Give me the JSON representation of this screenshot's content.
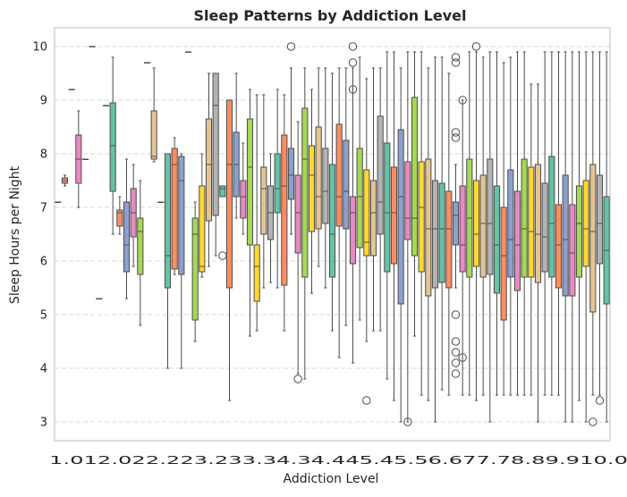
{
  "chart_data": {
    "type": "box",
    "title": "Sleep Patterns by Addiction Level",
    "xlabel": "Addiction Level",
    "ylabel": "Sleep Hours per Night",
    "ylim": [
      2.65,
      10.35
    ],
    "yticks": [
      3,
      4,
      5,
      6,
      7,
      8,
      9,
      10
    ],
    "grid": "horizontal-dashed",
    "legend": "none",
    "palette": [
      "#66c2a5",
      "#fc8d62",
      "#8da0cb",
      "#e78ac3",
      "#a6d854",
      "#ffd92f",
      "#e5c494",
      "#b3b3b3"
    ],
    "xtick_text": "1.012.022.223.233.34.34.445.45.56.677.78.89.910.0",
    "boxes": [
      {
        "q1": 7.1,
        "med": 7.1,
        "q3": 7.1,
        "lo": 7.1,
        "hi": 7.1,
        "out": []
      },
      {
        "q1": 7.45,
        "med": 7.5,
        "q3": 7.55,
        "lo": 7.4,
        "hi": 7.6,
        "out": []
      },
      {
        "q1": 9.2,
        "med": 9.2,
        "q3": 9.2,
        "lo": 9.2,
        "hi": 9.2,
        "out": []
      },
      {
        "q1": 7.45,
        "med": 7.9,
        "q3": 8.35,
        "lo": 7.0,
        "hi": 8.8,
        "out": []
      },
      {
        "q1": 7.9,
        "med": 7.9,
        "q3": 7.9,
        "lo": 7.9,
        "hi": 7.9,
        "out": []
      },
      {
        "q1": 10.0,
        "med": 10.0,
        "q3": 10.0,
        "lo": 10.0,
        "hi": 10.0,
        "out": []
      },
      {
        "q1": 5.3,
        "med": 5.3,
        "q3": 5.3,
        "lo": 5.3,
        "hi": 5.3,
        "out": []
      },
      {
        "q1": 8.9,
        "med": 8.9,
        "q3": 8.9,
        "lo": 8.9,
        "hi": 8.9,
        "out": []
      },
      {
        "q1": 7.3,
        "med": 8.15,
        "q3": 8.95,
        "lo": 6.5,
        "hi": 9.8,
        "out": []
      },
      {
        "q1": 6.65,
        "med": 6.9,
        "q3": 6.95,
        "lo": 6.5,
        "hi": 7.2,
        "out": []
      },
      {
        "q1": 5.8,
        "med": 6.3,
        "q3": 7.1,
        "lo": 5.3,
        "hi": 7.9,
        "out": []
      },
      {
        "q1": 6.45,
        "med": 6.9,
        "q3": 7.35,
        "lo": 5.9,
        "hi": 7.8,
        "out": []
      },
      {
        "q1": 5.75,
        "med": 6.55,
        "q3": 6.8,
        "lo": 4.8,
        "hi": 7.5,
        "out": []
      },
      {
        "q1": 9.7,
        "med": 9.7,
        "q3": 9.7,
        "lo": 9.7,
        "hi": 9.7,
        "out": []
      },
      {
        "q1": 7.9,
        "med": 7.95,
        "q3": 8.8,
        "lo": 7.85,
        "hi": 9.6,
        "out": []
      },
      {
        "q1": 7.1,
        "med": 7.1,
        "q3": 7.1,
        "lo": 7.1,
        "hi": 7.1,
        "out": []
      },
      {
        "q1": 5.5,
        "med": 6.1,
        "q3": 8.0,
        "lo": 4.0,
        "hi": 8.0,
        "out": []
      },
      {
        "q1": 5.85,
        "med": 7.8,
        "q3": 8.1,
        "lo": 5.75,
        "hi": 8.3,
        "out": []
      },
      {
        "q1": 5.75,
        "med": 7.5,
        "q3": 7.95,
        "lo": 4.0,
        "hi": 8.0,
        "out": []
      },
      {
        "q1": 9.9,
        "med": 9.9,
        "q3": 9.9,
        "lo": 9.9,
        "hi": 9.9,
        "out": []
      },
      {
        "q1": 4.9,
        "med": 6.5,
        "q3": 6.8,
        "lo": 4.5,
        "hi": 7.1,
        "out": []
      },
      {
        "q1": 5.8,
        "med": 5.9,
        "q3": 7.4,
        "lo": 5.7,
        "hi": 8.0,
        "out": []
      },
      {
        "q1": 6.75,
        "med": 7.8,
        "q3": 8.65,
        "lo": 5.9,
        "hi": 9.5,
        "out": []
      },
      {
        "q1": 6.85,
        "med": 8.9,
        "q3": 9.5,
        "lo": 6.1,
        "hi": 9.5,
        "out": []
      },
      {
        "q1": 7.2,
        "med": 7.35,
        "q3": 7.4,
        "lo": 7.2,
        "hi": 7.4,
        "out": [
          6.1
        ]
      },
      {
        "q1": 5.5,
        "med": 7.8,
        "q3": 9.0,
        "lo": 3.4,
        "hi": 9.0,
        "out": []
      },
      {
        "q1": 7.2,
        "med": 7.8,
        "q3": 8.4,
        "lo": 6.8,
        "hi": 9.5,
        "out": []
      },
      {
        "q1": 6.8,
        "med": 7.2,
        "q3": 7.5,
        "lo": 6.5,
        "hi": 8.2,
        "out": []
      },
      {
        "q1": 6.3,
        "med": 7.75,
        "q3": 8.65,
        "lo": 4.6,
        "hi": 9.2,
        "out": []
      },
      {
        "q1": 5.25,
        "med": 5.9,
        "q3": 6.3,
        "lo": 4.7,
        "hi": 9.1,
        "out": []
      },
      {
        "q1": 6.5,
        "med": 7.35,
        "q3": 7.75,
        "lo": 5.5,
        "hi": 9.1,
        "out": []
      },
      {
        "q1": 6.4,
        "med": 6.9,
        "q3": 7.4,
        "lo": 5.6,
        "hi": 8.0,
        "out": []
      },
      {
        "q1": 6.9,
        "med": 7.35,
        "q3": 8.0,
        "lo": 5.5,
        "hi": 9.2,
        "out": []
      },
      {
        "q1": 5.55,
        "med": 7.4,
        "q3": 8.35,
        "lo": 4.7,
        "hi": 9.1,
        "out": []
      },
      {
        "q1": 7.15,
        "med": 7.6,
        "q3": 8.1,
        "lo": 6.5,
        "hi": 9.6,
        "out": [
          10.0
        ]
      },
      {
        "q1": 6.15,
        "med": 6.9,
        "q3": 7.6,
        "lo": 3.9,
        "hi": 8.6,
        "out": [
          3.8
        ]
      },
      {
        "q1": 5.7,
        "med": 7.9,
        "q3": 8.85,
        "lo": 3.8,
        "hi": 9.6,
        "out": []
      },
      {
        "q1": 6.55,
        "med": 7.6,
        "q3": 8.15,
        "lo": 5.4,
        "hi": 9.2,
        "out": []
      },
      {
        "q1": 6.6,
        "med": 7.2,
        "q3": 8.5,
        "lo": 5.9,
        "hi": 9.6,
        "out": []
      },
      {
        "q1": 6.7,
        "med": 7.3,
        "q3": 8.1,
        "lo": 5.5,
        "hi": 9.6,
        "out": []
      },
      {
        "q1": 5.7,
        "med": 6.5,
        "q3": 7.8,
        "lo": 4.7,
        "hi": 9.5,
        "out": []
      },
      {
        "q1": 6.65,
        "med": 7.2,
        "q3": 8.55,
        "lo": 4.2,
        "hi": 9.6,
        "out": []
      },
      {
        "q1": 6.6,
        "med": 7.3,
        "q3": 8.25,
        "lo": 4.8,
        "hi": 9.6,
        "out": []
      },
      {
        "q1": 5.95,
        "med": 6.9,
        "q3": 7.2,
        "lo": 4.1,
        "hi": 9.6,
        "out": [
          10.0,
          9.7,
          9.2
        ]
      },
      {
        "q1": 6.25,
        "med": 7.2,
        "q3": 8.1,
        "lo": 4.9,
        "hi": 9.8,
        "out": []
      },
      {
        "q1": 6.1,
        "med": 6.35,
        "q3": 7.7,
        "lo": 4.5,
        "hi": 9.4,
        "out": [
          3.4
        ]
      },
      {
        "q1": 6.1,
        "med": 6.9,
        "q3": 7.5,
        "lo": 4.7,
        "hi": 9.6,
        "out": []
      },
      {
        "q1": 6.5,
        "med": 7.1,
        "q3": 8.7,
        "lo": 4.7,
        "hi": 9.6,
        "out": []
      },
      {
        "q1": 5.8,
        "med": 6.9,
        "q3": 8.2,
        "lo": 3.8,
        "hi": 9.9,
        "out": []
      },
      {
        "q1": 5.95,
        "med": 6.9,
        "q3": 7.75,
        "lo": 3.4,
        "hi": 9.9,
        "out": []
      },
      {
        "q1": 5.2,
        "med": 7.2,
        "q3": 8.45,
        "lo": 3.0,
        "hi": 9.6,
        "out": []
      },
      {
        "q1": 6.4,
        "med": 6.8,
        "q3": 7.85,
        "lo": 3.0,
        "hi": 9.9,
        "out": [
          3.0
        ]
      },
      {
        "q1": 6.1,
        "med": 6.8,
        "q3": 9.05,
        "lo": 4.6,
        "hi": 9.9,
        "out": []
      },
      {
        "q1": 5.8,
        "med": 7.0,
        "q3": 7.85,
        "lo": 3.5,
        "hi": 9.9,
        "out": []
      },
      {
        "q1": 5.35,
        "med": 6.6,
        "q3": 7.9,
        "lo": 3.4,
        "hi": 9.6,
        "out": []
      },
      {
        "q1": 5.5,
        "med": 6.6,
        "q3": 7.5,
        "lo": 3.0,
        "hi": 9.8,
        "out": []
      },
      {
        "q1": 5.6,
        "med": 6.6,
        "q3": 7.45,
        "lo": 3.6,
        "hi": 9.8,
        "out": []
      },
      {
        "q1": 5.5,
        "med": 6.6,
        "q3": 7.3,
        "lo": 3.5,
        "hi": 9.5,
        "out": []
      },
      {
        "q1": 6.3,
        "med": 6.85,
        "q3": 7.1,
        "lo": 5.5,
        "hi": 7.8,
        "out": [
          9.8,
          9.7,
          8.4,
          8.3,
          5.0,
          4.5,
          4.3,
          4.1,
          3.9
        ]
      },
      {
        "q1": 5.8,
        "med": 6.3,
        "q3": 7.4,
        "lo": 3.5,
        "hi": 9.0,
        "out": [
          9.0,
          4.2
        ]
      },
      {
        "q1": 5.7,
        "med": 6.8,
        "q3": 7.9,
        "lo": 3.5,
        "hi": 9.9,
        "out": []
      },
      {
        "q1": 5.9,
        "med": 6.5,
        "q3": 7.5,
        "lo": 3.4,
        "hi": 9.9,
        "out": [
          10.0
        ]
      },
      {
        "q1": 5.7,
        "med": 6.7,
        "q3": 7.6,
        "lo": 3.5,
        "hi": 9.8,
        "out": []
      },
      {
        "q1": 5.75,
        "med": 6.7,
        "q3": 7.9,
        "lo": 3.0,
        "hi": 9.9,
        "out": []
      },
      {
        "q1": 5.4,
        "med": 6.3,
        "q3": 7.4,
        "lo": 3.5,
        "hi": 9.9,
        "out": []
      },
      {
        "q1": 4.9,
        "med": 6.1,
        "q3": 7.0,
        "lo": 3.5,
        "hi": 9.7,
        "out": []
      },
      {
        "q1": 5.7,
        "med": 6.4,
        "q3": 7.7,
        "lo": 3.5,
        "hi": 9.8,
        "out": []
      },
      {
        "q1": 5.45,
        "med": 6.3,
        "q3": 7.3,
        "lo": 3.5,
        "hi": 9.9,
        "out": []
      },
      {
        "q1": 5.7,
        "med": 6.6,
        "q3": 7.9,
        "lo": 3.5,
        "hi": 9.9,
        "out": []
      },
      {
        "q1": 5.7,
        "med": 6.55,
        "q3": 7.75,
        "lo": 3.5,
        "hi": 9.3,
        "out": []
      },
      {
        "q1": 5.6,
        "med": 6.5,
        "q3": 7.8,
        "lo": 3.0,
        "hi": 9.3,
        "out": []
      },
      {
        "q1": 5.8,
        "med": 6.45,
        "q3": 7.45,
        "lo": 3.5,
        "hi": 9.9,
        "out": []
      },
      {
        "q1": 5.7,
        "med": 6.7,
        "q3": 7.95,
        "lo": 3.5,
        "hi": 9.9,
        "out": []
      },
      {
        "q1": 5.5,
        "med": 6.3,
        "q3": 7.05,
        "lo": 3.5,
        "hi": 9.9,
        "out": []
      },
      {
        "q1": 5.35,
        "med": 6.4,
        "q3": 7.6,
        "lo": 3.0,
        "hi": 9.9,
        "out": []
      },
      {
        "q1": 5.35,
        "med": 6.15,
        "q3": 7.05,
        "lo": 3.0,
        "hi": 9.9,
        "out": []
      },
      {
        "q1": 5.7,
        "med": 6.7,
        "q3": 7.4,
        "lo": 3.4,
        "hi": 9.9,
        "out": []
      },
      {
        "q1": 5.9,
        "med": 6.6,
        "q3": 7.5,
        "lo": 3.0,
        "hi": 9.9,
        "out": []
      },
      {
        "q1": 5.05,
        "med": 6.55,
        "q3": 7.8,
        "lo": 3.5,
        "hi": 9.9,
        "out": [
          3.0
        ]
      },
      {
        "q1": 5.95,
        "med": 6.7,
        "q3": 7.6,
        "lo": 3.5,
        "hi": 9.9,
        "out": [
          3.4
        ]
      },
      {
        "q1": 5.2,
        "med": 6.2,
        "q3": 7.2,
        "lo": 3.0,
        "hi": 9.9,
        "out": []
      }
    ]
  }
}
